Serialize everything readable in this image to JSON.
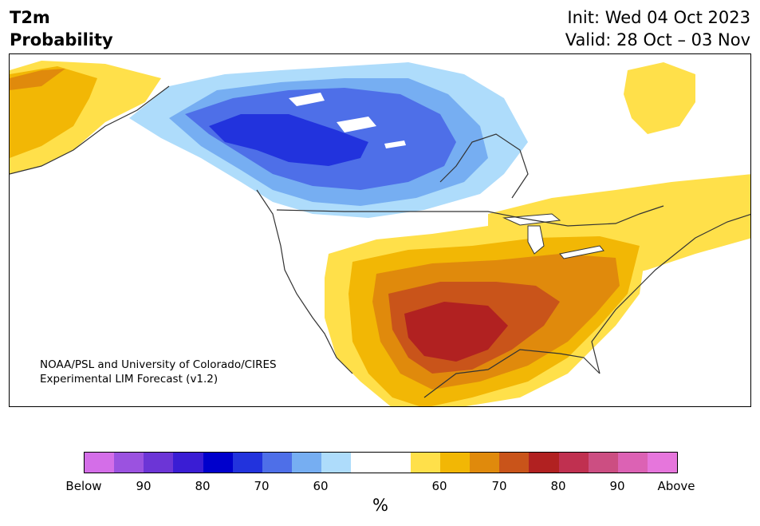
{
  "title": {
    "variable": "T2m",
    "subtitle": "Probability",
    "init": "Init: Wed 04 Oct 2023",
    "valid": "Valid: 28 Oct – 03 Nov"
  },
  "credit": {
    "line1": "NOAA/PSL and University of Colorado/CIRES",
    "line2": "Experimental LIM Forecast (v1.2)"
  },
  "colorbar": {
    "colors": [
      "#d46ee8",
      "#9b52e0",
      "#6c35d6",
      "#3a1dd4",
      "#0000cc",
      "#2233dd",
      "#4e6fe8",
      "#76aef2",
      "#aedcfb",
      "#ffffff",
      "#ffffff",
      "#ffe04a",
      "#f2b705",
      "#e08a0c",
      "#c9541a",
      "#b12121",
      "#c03050",
      "#cc4e82",
      "#dc62b4",
      "#e676dc"
    ],
    "labels": [
      "Below",
      "90",
      "80",
      "70",
      "60",
      "60",
      "70",
      "80",
      "90",
      "Above"
    ],
    "unit": "%"
  },
  "map_legend": {
    "below_normal_colors": {
      "p50_60": "#aedcfb",
      "p60_70": "#76aef2",
      "p70_80": "#4e6fe8",
      "p80_90": "#2233dd"
    },
    "above_normal_colors": {
      "p50_60": "#ffe04a",
      "p60_70": "#f2b705",
      "p70_80": "#e08a0c",
      "p80_90": "#c9541a",
      "p90_plus": "#b12121"
    }
  }
}
